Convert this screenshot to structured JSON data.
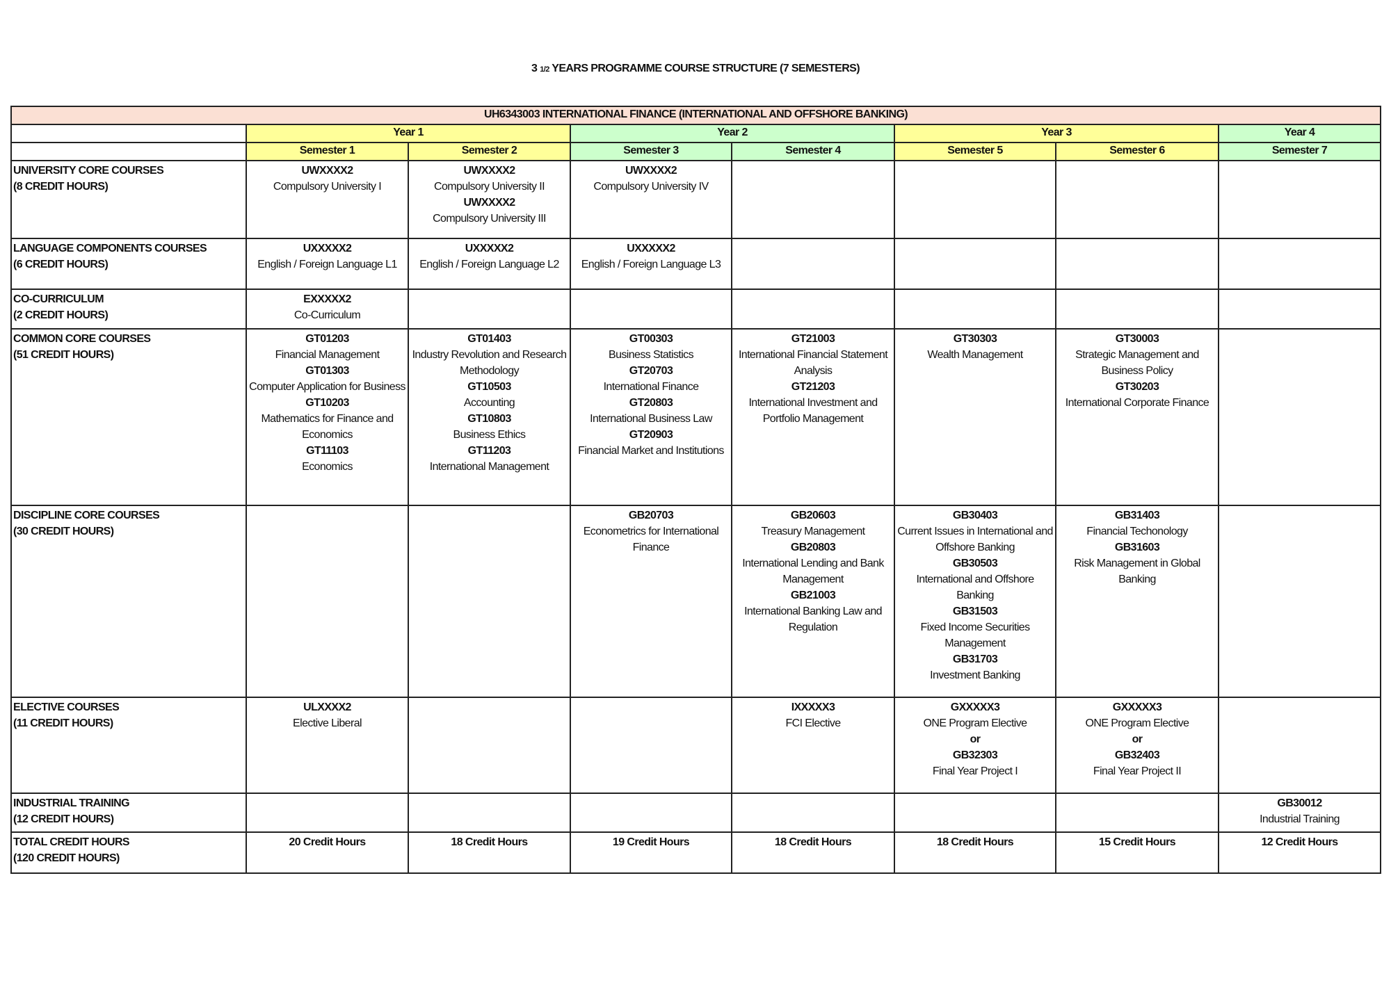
{
  "title_prefix": "3",
  "title_fraction": "1/2",
  "title_rest": "YEARS PROGRAMME COURSE STRUCTURE (7 SEMESTERS)",
  "programme": "UH6343003 INTERNATIONAL FINANCE (INTERNATIONAL AND OFFSHORE BANKING)",
  "colors": {
    "header": "#fbe0d4",
    "yellow": "#ffff99",
    "green": "#ccffcc"
  },
  "years": [
    {
      "label": "Year 1",
      "span": 2,
      "color": "yellow"
    },
    {
      "label": "Year 2",
      "span": 2,
      "color": "green"
    },
    {
      "label": "Year 3",
      "span": 2,
      "color": "yellow"
    },
    {
      "label": "Year 4",
      "span": 1,
      "color": "green"
    }
  ],
  "semesters": [
    {
      "label": "Semester 1",
      "color": "yellow"
    },
    {
      "label": "Semester 2",
      "color": "yellow"
    },
    {
      "label": "Semester 3",
      "color": "green"
    },
    {
      "label": "Semester 4",
      "color": "green"
    },
    {
      "label": "Semester 5",
      "color": "yellow"
    },
    {
      "label": "Semester 6",
      "color": "yellow"
    },
    {
      "label": "Semester 7",
      "color": "green"
    }
  ],
  "rows": [
    {
      "category": "UNIVERSITY CORE COURSES",
      "credits": "(8 CREDIT HOURS)",
      "cells": [
        [
          {
            "t": "UWXXXX2",
            "b": true
          },
          {
            "t": "Compulsory University I"
          }
        ],
        [
          {
            "t": "UWXXXX2",
            "b": true
          },
          {
            "t": "Compulsory University II"
          },
          {
            "t": "UWXXXX2",
            "b": true
          },
          {
            "t": "Compulsory University III"
          }
        ],
        [
          {
            "t": "UWXXXX2",
            "b": true
          },
          {
            "t": "Compulsory University IV"
          }
        ],
        [],
        [],
        [],
        []
      ]
    },
    {
      "category": "LANGUAGE COMPONENTS COURSES",
      "credits": "(6 CREDIT HOURS)",
      "cells": [
        [
          {
            "t": "UXXXXX2",
            "b": true
          },
          {
            "t": "English / Foreign Language L1"
          }
        ],
        [
          {
            "t": "UXXXXX2",
            "b": true
          },
          {
            "t": "English / Foreign Language L2"
          }
        ],
        [
          {
            "t": "UXXXXX2",
            "b": true
          },
          {
            "t": "English / Foreign Language L3"
          }
        ],
        [],
        [],
        [],
        []
      ]
    },
    {
      "category": "CO-CURRICULUM",
      "credits": "(2 CREDIT HOURS)",
      "cells": [
        [
          {
            "t": "EXXXXX2",
            "b": true
          },
          {
            "t": "Co-Curriculum"
          }
        ],
        [],
        [],
        [],
        [],
        [],
        []
      ]
    },
    {
      "category": "COMMON CORE COURSES",
      "credits": "(51 CREDIT HOURS)",
      "cells": [
        [
          {
            "t": "GT01203",
            "b": true
          },
          {
            "t": "Financial Management"
          },
          {
            "t": "GT01303",
            "b": true
          },
          {
            "t": "Computer Application for Business"
          },
          {
            "t": "GT10203",
            "b": true
          },
          {
            "t": "Mathematics for Finance and Economics"
          },
          {
            "t": "GT11103",
            "b": true
          },
          {
            "t": "Economics"
          }
        ],
        [
          {
            "t": "GT01403",
            "b": true
          },
          {
            "t": "Industry Revolution and Research Methodology"
          },
          {
            "t": "GT10503",
            "b": true
          },
          {
            "t": "Accounting"
          },
          {
            "t": "GT10803",
            "b": true
          },
          {
            "t": "Business Ethics"
          },
          {
            "t": "GT11203",
            "b": true
          },
          {
            "t": "International Management"
          }
        ],
        [
          {
            "t": "GT00303",
            "b": true
          },
          {
            "t": "Business Statistics"
          },
          {
            "t": "GT20703",
            "b": true
          },
          {
            "t": "International Finance"
          },
          {
            "t": "GT20803",
            "b": true
          },
          {
            "t": "International Business Law"
          },
          {
            "t": "GT20903",
            "b": true
          },
          {
            "t": "Financial Market and Institutions"
          }
        ],
        [
          {
            "t": "GT21003",
            "b": true
          },
          {
            "t": "International Financial Statement Analysis"
          },
          {
            "t": "GT21203",
            "b": true
          },
          {
            "t": "International Investment and Portfolio Management"
          }
        ],
        [
          {
            "t": "GT30303",
            "b": true
          },
          {
            "t": "Wealth Management"
          }
        ],
        [
          {
            "t": "GT30003",
            "b": true
          },
          {
            "t": "Strategic Management and Business Policy"
          },
          {
            "t": "GT30203",
            "b": true
          },
          {
            "t": "International Corporate Finance"
          }
        ],
        []
      ]
    },
    {
      "category": "DISCIPLINE CORE COURSES",
      "credits": "(30 CREDIT HOURS)",
      "cells": [
        [],
        [],
        [
          {
            "t": "GB20703",
            "b": true
          },
          {
            "t": "Econometrics for International Finance"
          }
        ],
        [
          {
            "t": "GB20603",
            "b": true
          },
          {
            "t": "Treasury Management"
          },
          {
            "t": "GB20803",
            "b": true
          },
          {
            "t": "International Lending and Bank Management"
          },
          {
            "t": "GB21003",
            "b": true
          },
          {
            "t": "International Banking Law and Regulation"
          }
        ],
        [
          {
            "t": "GB30403",
            "b": true
          },
          {
            "t": "Current Issues in International and Offshore Banking"
          },
          {
            "t": "GB30503",
            "b": true
          },
          {
            "t": "International and Offshore Banking"
          },
          {
            "t": "GB31503",
            "b": true
          },
          {
            "t": "Fixed Income Securities Management"
          },
          {
            "t": "GB31703",
            "b": true
          },
          {
            "t": "Investment Banking"
          }
        ],
        [
          {
            "t": "GB31403",
            "b": true
          },
          {
            "t": "Financial Techonology"
          },
          {
            "t": "GB31603",
            "b": true
          },
          {
            "t": "Risk Management in Global Banking"
          }
        ],
        []
      ]
    },
    {
      "category": "ELECTIVE COURSES",
      "credits": "(11 CREDIT HOURS)",
      "cells": [
        [
          {
            "t": "ULXXXX2",
            "b": true
          },
          {
            "t": "Elective Liberal"
          }
        ],
        [],
        [],
        [
          {
            "t": "IXXXXX3",
            "b": true
          },
          {
            "t": "FCI Elective"
          }
        ],
        [
          {
            "t": "GXXXXX3",
            "b": true
          },
          {
            "t": "ONE Program Elective"
          },
          {
            "t": "or",
            "b": true
          },
          {
            "t": "GB32303",
            "b": true
          },
          {
            "t": "Final Year Project I"
          }
        ],
        [
          {
            "t": "GXXXXX3",
            "b": true
          },
          {
            "t": "ONE Program Elective"
          },
          {
            "t": "or",
            "b": true
          },
          {
            "t": "GB32403",
            "b": true
          },
          {
            "t": "Final Year Project II"
          }
        ],
        []
      ]
    },
    {
      "category": "INDUSTRIAL TRAINING",
      "credits": "(12 CREDIT HOURS)",
      "cells": [
        [],
        [],
        [],
        [],
        [],
        [],
        [
          {
            "t": "GB30012",
            "b": true
          },
          {
            "t": "Industrial Training"
          }
        ]
      ]
    },
    {
      "category": "TOTAL CREDIT HOURS",
      "credits": "(120 CREDIT HOURS)",
      "cells": [
        [
          {
            "t": "20 Credit Hours",
            "b": true
          }
        ],
        [
          {
            "t": "18 Credit Hours",
            "b": true
          }
        ],
        [
          {
            "t": "19 Credit Hours",
            "b": true
          }
        ],
        [
          {
            "t": "18 Credit Hours",
            "b": true
          }
        ],
        [
          {
            "t": "18 Credit Hours",
            "b": true
          }
        ],
        [
          {
            "t": "15 Credit Hours",
            "b": true
          }
        ],
        [
          {
            "t": "12 Credit Hours",
            "b": true
          }
        ]
      ]
    }
  ]
}
